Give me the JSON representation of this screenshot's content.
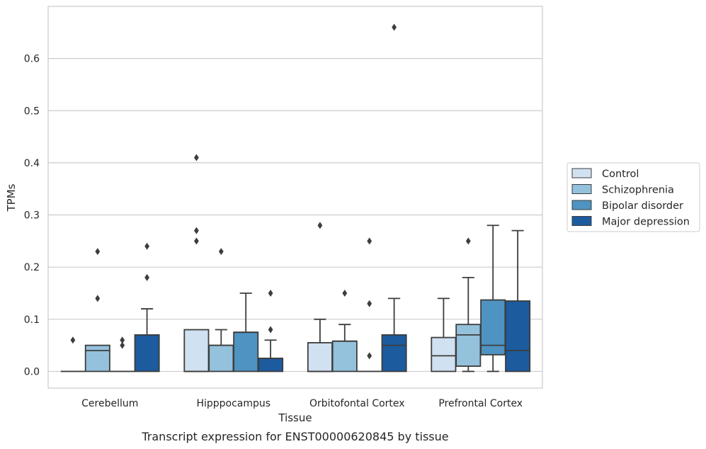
{
  "chart_data": {
    "type": "box",
    "xlabel": "Tissue",
    "ylabel": "TPMs",
    "caption": "Transcript expression for ENST00000620845 by tissue",
    "ylim": [
      -0.032,
      0.7
    ],
    "yticks": [
      "0.0",
      "0.1",
      "0.2",
      "0.3",
      "0.4",
      "0.5",
      "0.6"
    ],
    "grid": true,
    "legend_position": "right",
    "categories": [
      "Cerebellum",
      "Hipppocampus",
      "Orbitofontal Cortex",
      "Prefrontal Cortex"
    ],
    "series": [
      {
        "name": "Control",
        "color": "#d0e1f1",
        "boxes": [
          {
            "q1": 0,
            "median": 0,
            "q3": 0,
            "whisker_low": 0,
            "whisker_high": 0,
            "outliers": [
              0.06
            ]
          },
          {
            "q1": 0,
            "median": 0,
            "q3": 0.08,
            "whisker_low": 0,
            "whisker_high": 0.08,
            "outliers": [
              0.25,
              0.27,
              0.41
            ]
          },
          {
            "q1": 0,
            "median": 0,
            "q3": 0.055,
            "whisker_low": 0,
            "whisker_high": 0.1,
            "outliers": [
              0.28
            ]
          },
          {
            "q1": 0,
            "median": 0.03,
            "q3": 0.065,
            "whisker_low": 0,
            "whisker_high": 0.14,
            "outliers": []
          }
        ]
      },
      {
        "name": "Schizophrenia",
        "color": "#94c1dc",
        "boxes": [
          {
            "q1": 0,
            "median": 0.04,
            "q3": 0.05,
            "whisker_low": 0,
            "whisker_high": 0.05,
            "outliers": [
              0.14,
              0.23
            ]
          },
          {
            "q1": 0,
            "median": 0.05,
            "q3": 0.05,
            "whisker_low": 0,
            "whisker_high": 0.08,
            "outliers": [
              0.23
            ]
          },
          {
            "q1": 0,
            "median": 0.058,
            "q3": 0.058,
            "whisker_low": 0,
            "whisker_high": 0.09,
            "outliers": [
              0.15
            ]
          },
          {
            "q1": 0.01,
            "median": 0.07,
            "q3": 0.09,
            "whisker_low": 0,
            "whisker_high": 0.18,
            "outliers": [
              0.25
            ]
          }
        ]
      },
      {
        "name": "Bipolar disorder",
        "color": "#4f93c2",
        "boxes": [
          {
            "q1": 0,
            "median": 0,
            "q3": 0,
            "whisker_low": 0,
            "whisker_high": 0,
            "outliers": [
              0.05,
              0.06
            ]
          },
          {
            "q1": 0,
            "median": 0.075,
            "q3": 0.075,
            "whisker_low": 0,
            "whisker_high": 0.15,
            "outliers": []
          },
          {
            "q1": 0,
            "median": 0,
            "q3": 0,
            "whisker_low": 0,
            "whisker_high": 0,
            "outliers": [
              0.03,
              0.13,
              0.25
            ]
          },
          {
            "q1": 0.032,
            "median": 0.05,
            "q3": 0.137,
            "whisker_low": 0,
            "whisker_high": 0.28,
            "outliers": []
          }
        ]
      },
      {
        "name": "Major depression",
        "color": "#1c5b9e",
        "boxes": [
          {
            "q1": 0,
            "median": 0.07,
            "q3": 0.07,
            "whisker_low": 0,
            "whisker_high": 0.12,
            "outliers": [
              0.18,
              0.24
            ]
          },
          {
            "q1": 0,
            "median": 0.025,
            "q3": 0.025,
            "whisker_low": 0,
            "whisker_high": 0.06,
            "outliers": [
              0.08,
              0.15
            ]
          },
          {
            "q1": 0,
            "median": 0.05,
            "q3": 0.07,
            "whisker_low": 0,
            "whisker_high": 0.14,
            "outliers": [
              0.66
            ]
          },
          {
            "q1": 0,
            "median": 0.04,
            "q3": 0.135,
            "whisker_low": 0,
            "whisker_high": 0.27,
            "outliers": []
          }
        ]
      }
    ]
  }
}
